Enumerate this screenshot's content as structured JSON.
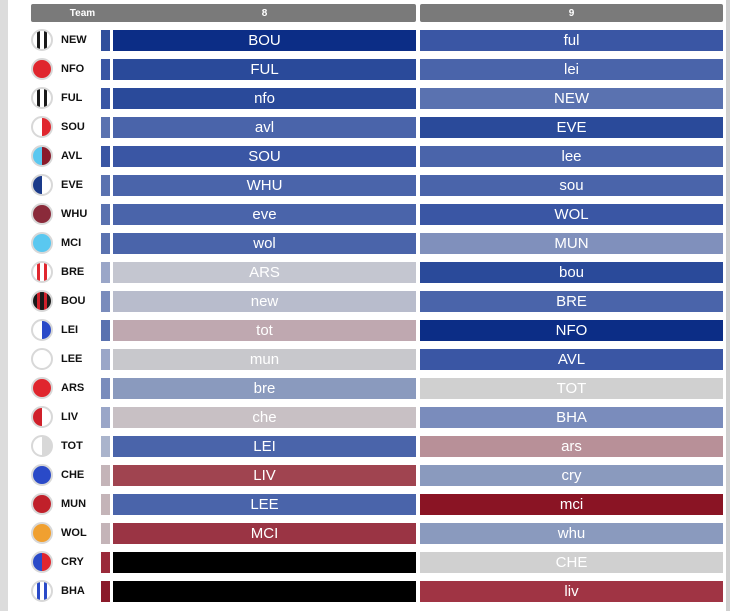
{
  "header": {
    "team": "Team",
    "col1": "8",
    "col2": "9"
  },
  "rows": [
    {
      "team": "NEW",
      "swatch": "#2f4e9c",
      "c1": {
        "text": "BOU",
        "color": "#0c2d86"
      },
      "c2": {
        "text": "ful",
        "color": "#3a56a4"
      },
      "logo": {
        "type": "stripes",
        "colors": [
          "#ffffff",
          "#1a1a1a"
        ]
      }
    },
    {
      "team": "NFO",
      "swatch": "#3a56a4",
      "c1": {
        "text": "FUL",
        "color": "#2a4a9a"
      },
      "c2": {
        "text": "lei",
        "color": "#4a64aa"
      },
      "logo": {
        "type": "solid",
        "colors": [
          "#e0262e"
        ]
      }
    },
    {
      "team": "FUL",
      "swatch": "#3a56a4",
      "c1": {
        "text": "nfo",
        "color": "#2a4a9a"
      },
      "c2": {
        "text": "NEW",
        "color": "#5a72b0"
      },
      "logo": {
        "type": "stripes",
        "colors": [
          "#ffffff",
          "#1a1a1a"
        ]
      }
    },
    {
      "team": "SOU",
      "swatch": "#5a72b0",
      "c1": {
        "text": "avl",
        "color": "#4a64aa"
      },
      "c2": {
        "text": "EVE",
        "color": "#2a4a9a"
      },
      "logo": {
        "type": "half",
        "colors": [
          "#ffffff",
          "#e0262e"
        ]
      }
    },
    {
      "team": "AVL",
      "swatch": "#3a56a4",
      "c1": {
        "text": "SOU",
        "color": "#3a56a4"
      },
      "c2": {
        "text": "lee",
        "color": "#4a64aa"
      },
      "logo": {
        "type": "half",
        "colors": [
          "#5ac8f0",
          "#8a1a2a"
        ]
      }
    },
    {
      "team": "EVE",
      "swatch": "#5a72b0",
      "c1": {
        "text": "WHU",
        "color": "#4a64aa"
      },
      "c2": {
        "text": "sou",
        "color": "#4a64aa"
      },
      "logo": {
        "type": "half",
        "colors": [
          "#1a3a8a",
          "#ffffff"
        ]
      }
    },
    {
      "team": "WHU",
      "swatch": "#5a72b0",
      "c1": {
        "text": "eve",
        "color": "#4a64aa"
      },
      "c2": {
        "text": "WOL",
        "color": "#3a56a4"
      },
      "logo": {
        "type": "solid",
        "colors": [
          "#8a2a3a"
        ]
      }
    },
    {
      "team": "MCI",
      "swatch": "#5a72b0",
      "c1": {
        "text": "wol",
        "color": "#4a64aa"
      },
      "c2": {
        "text": "MUN",
        "color": "#8090bc"
      },
      "logo": {
        "type": "solid",
        "colors": [
          "#5ac8f0"
        ]
      }
    },
    {
      "team": "BRE",
      "swatch": "#9aa6c8",
      "c1": {
        "text": "ARS",
        "color": "#c4c6d0"
      },
      "c2": {
        "text": "bou",
        "color": "#2a4a9a"
      },
      "logo": {
        "type": "stripes",
        "colors": [
          "#ffffff",
          "#e0262e"
        ]
      }
    },
    {
      "team": "BOU",
      "swatch": "#7a8cbc",
      "c1": {
        "text": "new",
        "color": "#b8bccc"
      },
      "c2": {
        "text": "BRE",
        "color": "#4a64aa"
      },
      "logo": {
        "type": "stripes",
        "colors": [
          "#1a1a1a",
          "#d0202a"
        ]
      }
    },
    {
      "team": "LEI",
      "swatch": "#5a72b0",
      "c1": {
        "text": "tot",
        "color": "#bfa8b0"
      },
      "c2": {
        "text": "NFO",
        "color": "#0c2d86"
      },
      "logo": {
        "type": "half",
        "colors": [
          "#ffffff",
          "#2a4ac8"
        ]
      }
    },
    {
      "team": "LEE",
      "swatch": "#9aa6c8",
      "c1": {
        "text": "mun",
        "color": "#c8c8cc"
      },
      "c2": {
        "text": "AVL",
        "color": "#3a56a4"
      },
      "logo": {
        "type": "solid",
        "colors": [
          "#ffffff"
        ]
      }
    },
    {
      "team": "ARS",
      "swatch": "#7a8cbc",
      "c1": {
        "text": "bre",
        "color": "#8a9abe"
      },
      "c2": {
        "text": "TOT",
        "color": "#d0d0d0"
      },
      "logo": {
        "type": "solid",
        "colors": [
          "#e0262e"
        ]
      }
    },
    {
      "team": "LIV",
      "swatch": "#9aa6c8",
      "c1": {
        "text": "che",
        "color": "#c8c0c4"
      },
      "c2": {
        "text": "BHA",
        "color": "#7a8cbc"
      },
      "logo": {
        "type": "half",
        "colors": [
          "#d0202a",
          "#ffffff"
        ]
      }
    },
    {
      "team": "TOT",
      "swatch": "#aab4cc",
      "c1": {
        "text": "LEI",
        "color": "#4a64aa"
      },
      "c2": {
        "text": "ars",
        "color": "#b89098"
      },
      "logo": {
        "type": "half",
        "colors": [
          "#ffffff",
          "#d8d8d8"
        ]
      }
    },
    {
      "team": "CHE",
      "swatch": "#c4b4b8",
      "c1": {
        "text": "LIV",
        "color": "#a04450"
      },
      "c2": {
        "text": "cry",
        "color": "#8a9abe"
      },
      "logo": {
        "type": "solid",
        "colors": [
          "#2a4ac8"
        ]
      }
    },
    {
      "team": "MUN",
      "swatch": "#c4b4b8",
      "c1": {
        "text": "LEE",
        "color": "#4a64aa"
      },
      "c2": {
        "text": "mci",
        "color": "#8a1424"
      },
      "logo": {
        "type": "solid",
        "colors": [
          "#c0202a"
        ]
      }
    },
    {
      "team": "WOL",
      "swatch": "#c4b4b8",
      "c1": {
        "text": "MCI",
        "color": "#9a3444"
      },
      "c2": {
        "text": "whu",
        "color": "#8a9abe"
      },
      "logo": {
        "type": "solid",
        "colors": [
          "#f0a030"
        ]
      }
    },
    {
      "team": "CRY",
      "swatch": "#9a2a3a",
      "c1": {
        "text": "",
        "color": "#000000"
      },
      "c2": {
        "text": "CHE",
        "color": "#d0d0d0"
      },
      "logo": {
        "type": "half",
        "colors": [
          "#2a4ac8",
          "#e0262e"
        ]
      }
    },
    {
      "team": "BHA",
      "swatch": "#8a1a2a",
      "c1": {
        "text": "",
        "color": "#000000"
      },
      "c2": {
        "text": "liv",
        "color": "#a03444"
      },
      "logo": {
        "type": "stripes",
        "colors": [
          "#ffffff",
          "#2a4ac8"
        ]
      }
    }
  ]
}
